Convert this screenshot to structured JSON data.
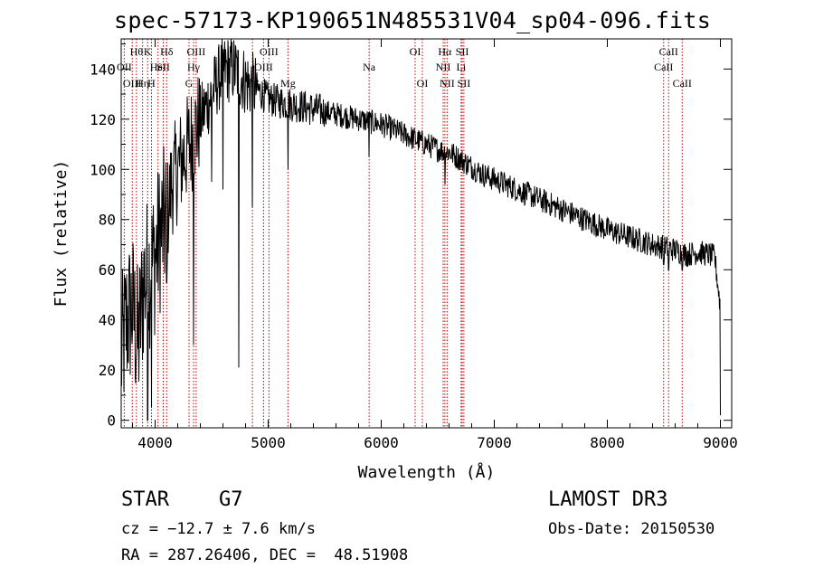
{
  "header": {
    "title": "spec-57173-KP190651N485531V04_sp04-096.fits"
  },
  "info": {
    "object_type": "STAR",
    "subclass": "G7",
    "cz": "cz = −12.7 ± 7.6 km/s",
    "radec": "RA = 287.26406, DEC =  48.51908",
    "survey": "LAMOST DR3",
    "obs_date": "Obs-Date: 20150530"
  },
  "colors": {
    "line": "#000000",
    "marker": "#c00000",
    "background": "#ffffff"
  },
  "chart_data": {
    "type": "line",
    "title": "spec-57173-KP190651N485531V04_sp04-096.fits",
    "xlabel": "Wavelength (Å)",
    "ylabel": "Flux (relative)",
    "xlim": [
      3700,
      9100
    ],
    "ylim": [
      -3,
      152
    ],
    "xticks": [
      4000,
      5000,
      6000,
      7000,
      8000,
      9000
    ],
    "yticks": [
      0,
      20,
      40,
      60,
      80,
      100,
      120,
      140
    ],
    "grid": false,
    "series": [
      {
        "name": "flux",
        "anchors": {
          "x": [
            3700,
            3750,
            3800,
            3850,
            3900,
            3950,
            4000,
            4050,
            4100,
            4150,
            4200,
            4250,
            4300,
            4350,
            4400,
            4450,
            4500,
            4550,
            4600,
            4700,
            4800,
            4900,
            5000,
            5100,
            5200,
            5300,
            5400,
            5500,
            5600,
            5700,
            5800,
            5900,
            6000,
            6100,
            6200,
            6300,
            6400,
            6500,
            6563,
            6600,
            6700,
            6800,
            6900,
            7000,
            7200,
            7400,
            7600,
            7800,
            8000,
            8200,
            8400,
            8500,
            8600,
            8700,
            8800,
            8900,
            8950,
            9000
          ],
          "y": [
            25,
            40,
            45,
            30,
            55,
            60,
            65,
            75,
            80,
            95,
            100,
            105,
            110,
            115,
            120,
            125,
            130,
            135,
            140,
            140,
            135,
            132,
            128,
            127,
            126,
            125,
            124,
            123,
            122,
            121,
            120,
            119,
            118,
            116,
            114,
            112,
            110,
            108,
            107,
            107,
            104,
            101,
            98,
            96,
            92,
            88,
            84,
            80,
            76,
            73,
            70,
            69,
            68,
            66,
            67,
            66,
            65,
            45
          ]
        },
        "noise_amplitude": "high below 4500 Å, moderate redward",
        "absorption_features": [
          {
            "x": 3934,
            "y": 0
          },
          {
            "x": 3968,
            "y": 5
          },
          {
            "x": 4102,
            "y": 55
          },
          {
            "x": 4340,
            "y": 30
          },
          {
            "x": 4500,
            "y": 95
          },
          {
            "x": 4600,
            "y": 92
          },
          {
            "x": 4740,
            "y": 21
          },
          {
            "x": 4861,
            "y": 85
          },
          {
            "x": 5175,
            "y": 100
          },
          {
            "x": 5893,
            "y": 105
          },
          {
            "x": 6563,
            "y": 94
          },
          {
            "x": 8498,
            "y": 62
          },
          {
            "x": 8542,
            "y": 60
          },
          {
            "x": 8662,
            "y": 60
          },
          {
            "x": 9000,
            "y": 2
          }
        ]
      }
    ],
    "line_markers": [
      {
        "x": 3727,
        "label": "OII",
        "row": 1
      },
      {
        "x": 3798,
        "label": "OIII",
        "row": 2
      },
      {
        "x": 3835,
        "label": "Hθ",
        "row": 0
      },
      {
        "x": 3889,
        "label": "Hη",
        "row": 2
      },
      {
        "x": 3934,
        "label": "K",
        "row": 0
      },
      {
        "x": 3968,
        "label": "H",
        "row": 2
      },
      {
        "x": 4026,
        "label": "HeI",
        "row": 1
      },
      {
        "x": 4072,
        "label": "SII",
        "row": 1
      },
      {
        "x": 4102,
        "label": "Hδ",
        "row": 0
      },
      {
        "x": 4300,
        "label": "G",
        "row": 2
      },
      {
        "x": 4340,
        "label": "Hγ",
        "row": 1
      },
      {
        "x": 4363,
        "label": "OIII",
        "row": 0
      },
      {
        "x": 4861,
        "label": "Hβ",
        "row": 2
      },
      {
        "x": 4959,
        "label": "OIII",
        "row": 1
      },
      {
        "x": 5007,
        "label": "OIII",
        "row": 0
      },
      {
        "x": 5175,
        "label": "Mg",
        "row": 2
      },
      {
        "x": 5893,
        "label": "Na",
        "row": 1
      },
      {
        "x": 6300,
        "label": "OI",
        "row": 0
      },
      {
        "x": 6364,
        "label": "OI",
        "row": 2
      },
      {
        "x": 6548,
        "label": "NII",
        "row": 1
      },
      {
        "x": 6563,
        "label": "Hα",
        "row": 0
      },
      {
        "x": 6583,
        "label": "NII",
        "row": 2
      },
      {
        "x": 6707,
        "label": "Li",
        "row": 1
      },
      {
        "x": 6716,
        "label": "SII",
        "row": 0
      },
      {
        "x": 6731,
        "label": "SII",
        "row": 2
      },
      {
        "x": 8498,
        "label": "CaII",
        "row": 1
      },
      {
        "x": 8542,
        "label": "CaII",
        "row": 0
      },
      {
        "x": 8662,
        "label": "CaII",
        "row": 2
      }
    ]
  }
}
